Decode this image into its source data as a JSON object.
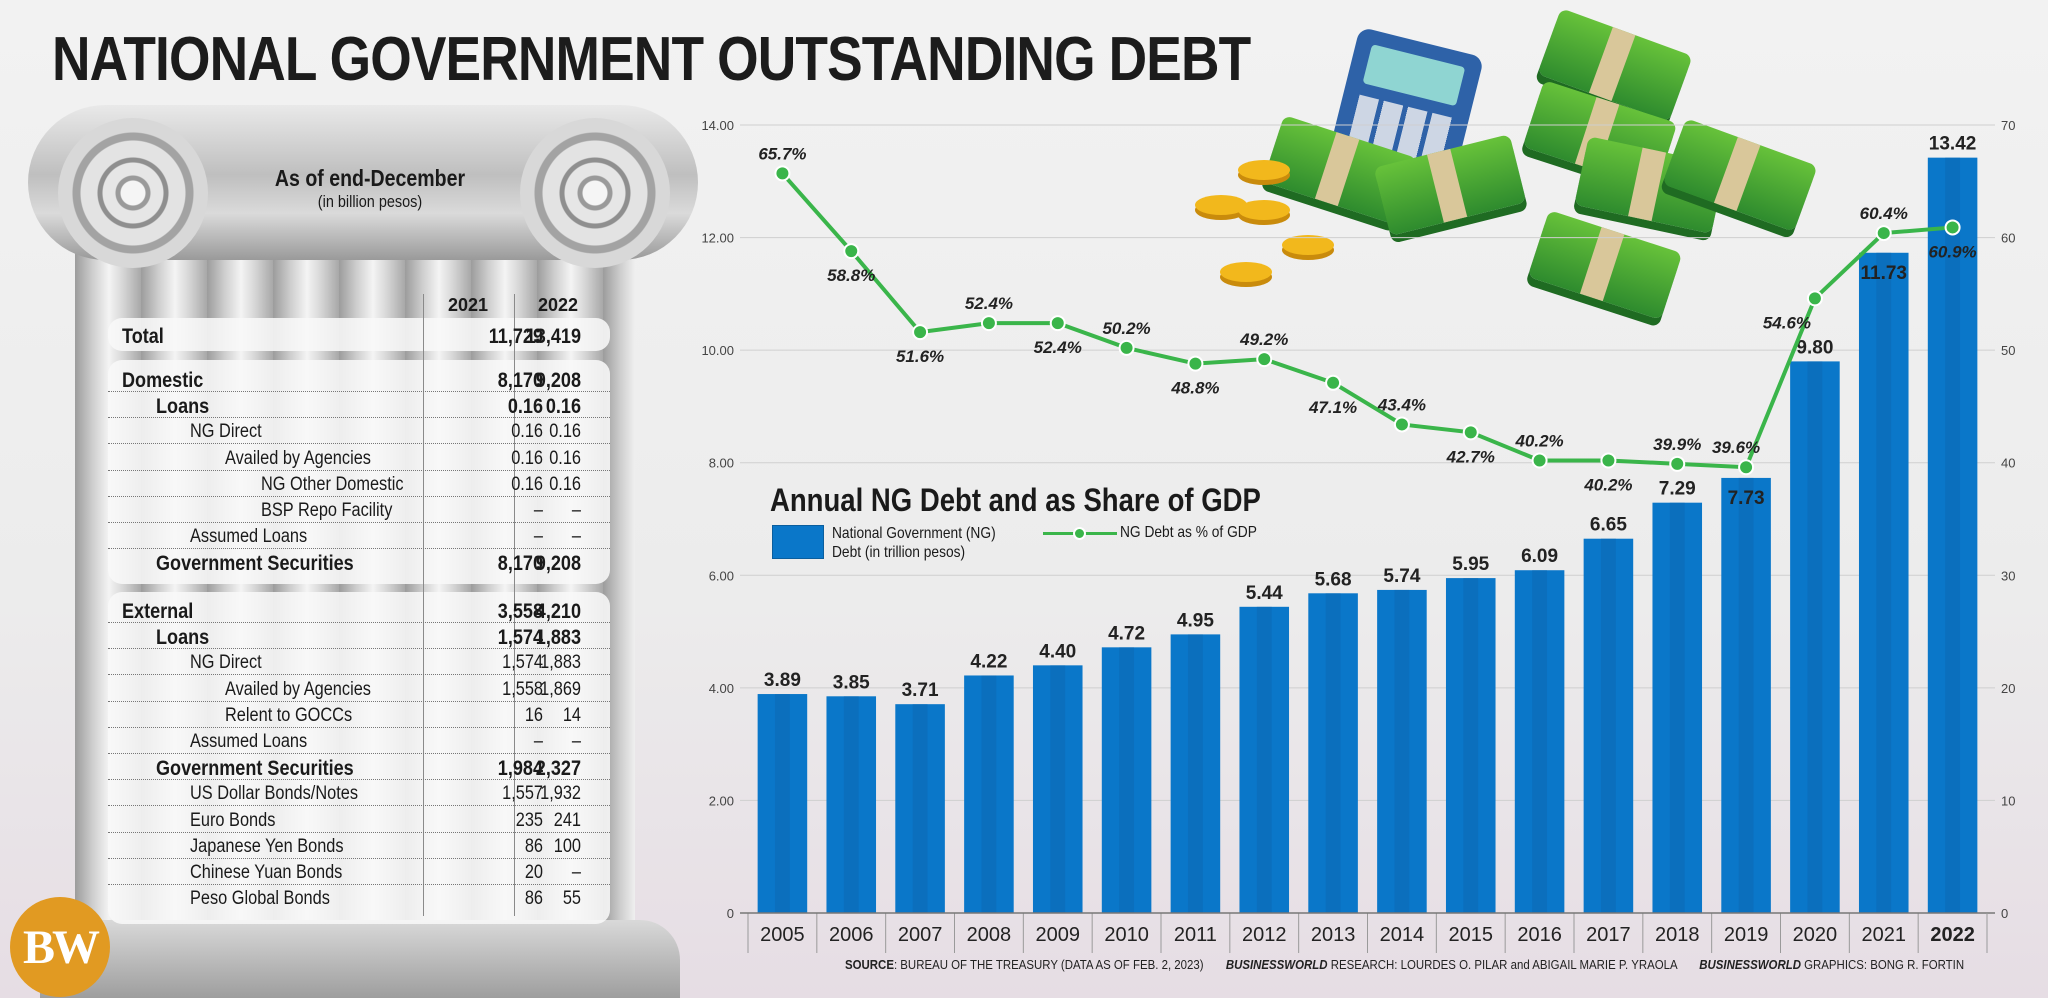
{
  "title": "NATIONAL GOVERNMENT OUTSTANDING DEBT",
  "table": {
    "caption": "As of end-December",
    "subcaption": "(in billion pesos)",
    "years": [
      "2021",
      "2022"
    ],
    "total": {
      "label": "Total",
      "v2021": "11,729",
      "v2022": "13,419"
    },
    "domestic": [
      {
        "label": "Domestic",
        "v2021": "8,170",
        "v2022": "9,208",
        "level": 0,
        "bold": true
      },
      {
        "label": "Loans",
        "v2021": "0.16",
        "v2022": "0.16",
        "level": 1,
        "bold": true
      },
      {
        "label": "NG Direct",
        "v2021": "0.16",
        "v2022": "0.16",
        "level": 2,
        "bold": false
      },
      {
        "label": "Availed by Agencies",
        "v2021": "0.16",
        "v2022": "0.16",
        "level": 3,
        "bold": false
      },
      {
        "label": "NG Other Domestic",
        "v2021": "0.16",
        "v2022": "0.16",
        "level": 4,
        "bold": false
      },
      {
        "label": "BSP Repo Facility",
        "v2021": "–",
        "v2022": "–",
        "level": 4,
        "bold": false
      },
      {
        "label": "Assumed Loans",
        "v2021": "–",
        "v2022": "–",
        "level": 2,
        "bold": false
      },
      {
        "label": "Government Securities",
        "v2021": "8,170",
        "v2022": "9,208",
        "level": 1,
        "bold": true
      }
    ],
    "external": [
      {
        "label": "External",
        "v2021": "3,558",
        "v2022": "4,210",
        "level": 0,
        "bold": true
      },
      {
        "label": "Loans",
        "v2021": "1,574",
        "v2022": "1,883",
        "level": 1,
        "bold": true
      },
      {
        "label": "NG Direct",
        "v2021": "1,574",
        "v2022": "1,883",
        "level": 2,
        "bold": false
      },
      {
        "label": "Availed by Agencies",
        "v2021": "1,558",
        "v2022": "1,869",
        "level": 3,
        "bold": false
      },
      {
        "label": "Relent to GOCCs",
        "v2021": "16",
        "v2022": "14",
        "level": 3,
        "bold": false
      },
      {
        "label": "Assumed Loans",
        "v2021": "–",
        "v2022": "–",
        "level": 2,
        "bold": false
      },
      {
        "label": "Government Securities",
        "v2021": "1,984",
        "v2022": "2,327",
        "level": 1,
        "bold": true
      },
      {
        "label": "US Dollar Bonds/Notes",
        "v2021": "1,557",
        "v2022": "1,932",
        "level": 2,
        "bold": false
      },
      {
        "label": "Euro Bonds",
        "v2021": "235",
        "v2022": "241",
        "level": 2,
        "bold": false
      },
      {
        "label": "Japanese Yen Bonds",
        "v2021": "86",
        "v2022": "100",
        "level": 2,
        "bold": false
      },
      {
        "label": "Chinese Yuan Bonds",
        "v2021": "20",
        "v2022": "–",
        "level": 2,
        "bold": false
      },
      {
        "label": "Peso Global Bonds",
        "v2021": "86",
        "v2022": "55",
        "level": 2,
        "bold": false
      }
    ]
  },
  "logo": {
    "text": "BW",
    "color": "#e19a22"
  },
  "chart_data": {
    "type": "bar",
    "title": "Annual NG Debt and as Share of GDP",
    "categories": [
      "2005",
      "2006",
      "2007",
      "2008",
      "2009",
      "2010",
      "2011",
      "2012",
      "2013",
      "2014",
      "2015",
      "2016",
      "2017",
      "2018",
      "2019",
      "2020",
      "2021",
      "2022"
    ],
    "series": [
      {
        "name": "National Government (NG) Debt (in trillion pesos)",
        "type": "bar",
        "axis": "left",
        "color": "#0a77c9",
        "values": [
          3.89,
          3.85,
          3.71,
          4.22,
          4.4,
          4.72,
          4.95,
          5.44,
          5.68,
          5.74,
          5.95,
          6.09,
          6.65,
          7.29,
          7.73,
          9.8,
          11.73,
          13.42
        ],
        "labels": [
          "3.89",
          "3.85",
          "3.71",
          "4.22",
          "4.40",
          "4.72",
          "4.95",
          "5.44",
          "5.68",
          "5.74",
          "5.95",
          "6.09",
          "6.65",
          "7.29",
          "7.73",
          "9.80",
          "11.73",
          "13.42"
        ]
      },
      {
        "name": "NG Debt as % of GDP",
        "type": "line",
        "axis": "right",
        "color": "#3ab54a",
        "values": [
          65.7,
          58.8,
          51.6,
          52.4,
          52.4,
          50.2,
          48.8,
          49.2,
          47.1,
          43.4,
          42.7,
          40.2,
          40.2,
          39.9,
          39.6,
          54.6,
          60.4,
          60.9
        ],
        "labels": [
          "65.7%",
          "58.8%",
          "51.6%",
          "52.4%",
          "52.4%",
          "50.2%",
          "48.8%",
          "49.2%",
          "47.1%",
          "43.4%",
          "42.7%",
          "40.2%",
          "40.2%",
          "39.9%",
          "39.6%",
          "54.6%",
          "60.4%",
          "60.9%"
        ]
      }
    ],
    "y_left": {
      "ylim": [
        0,
        14
      ],
      "ticks": [
        "0",
        "2.00",
        "4.00",
        "6.00",
        "8.00",
        "10.00",
        "12.00",
        "14.00"
      ]
    },
    "y_right": {
      "ylim": [
        0,
        70
      ],
      "ticks": [
        "0",
        "10",
        "20",
        "30",
        "40",
        "50",
        "60",
        "70"
      ]
    },
    "grid": true,
    "legend": {
      "bar_label_line1": "National Government (NG)",
      "bar_label_line2": "Debt (in trillion pesos)",
      "line_label": "NG Debt as % of GDP",
      "placement": "center-left"
    }
  },
  "source": {
    "source_label": "SOURCE",
    "source_text": ": BUREAU OF THE TREASURY (DATA AS OF FEB. 2, 2023)",
    "research_label": "BUSINESSWORLD",
    "research_text": " RESEARCH: LOURDES O. PILAR and ABIGAIL MARIE P. YRAOLA",
    "graphics_label": "BUSINESSWORLD",
    "graphics_text": " GRAPHICS: BONG R. FORTIN"
  }
}
